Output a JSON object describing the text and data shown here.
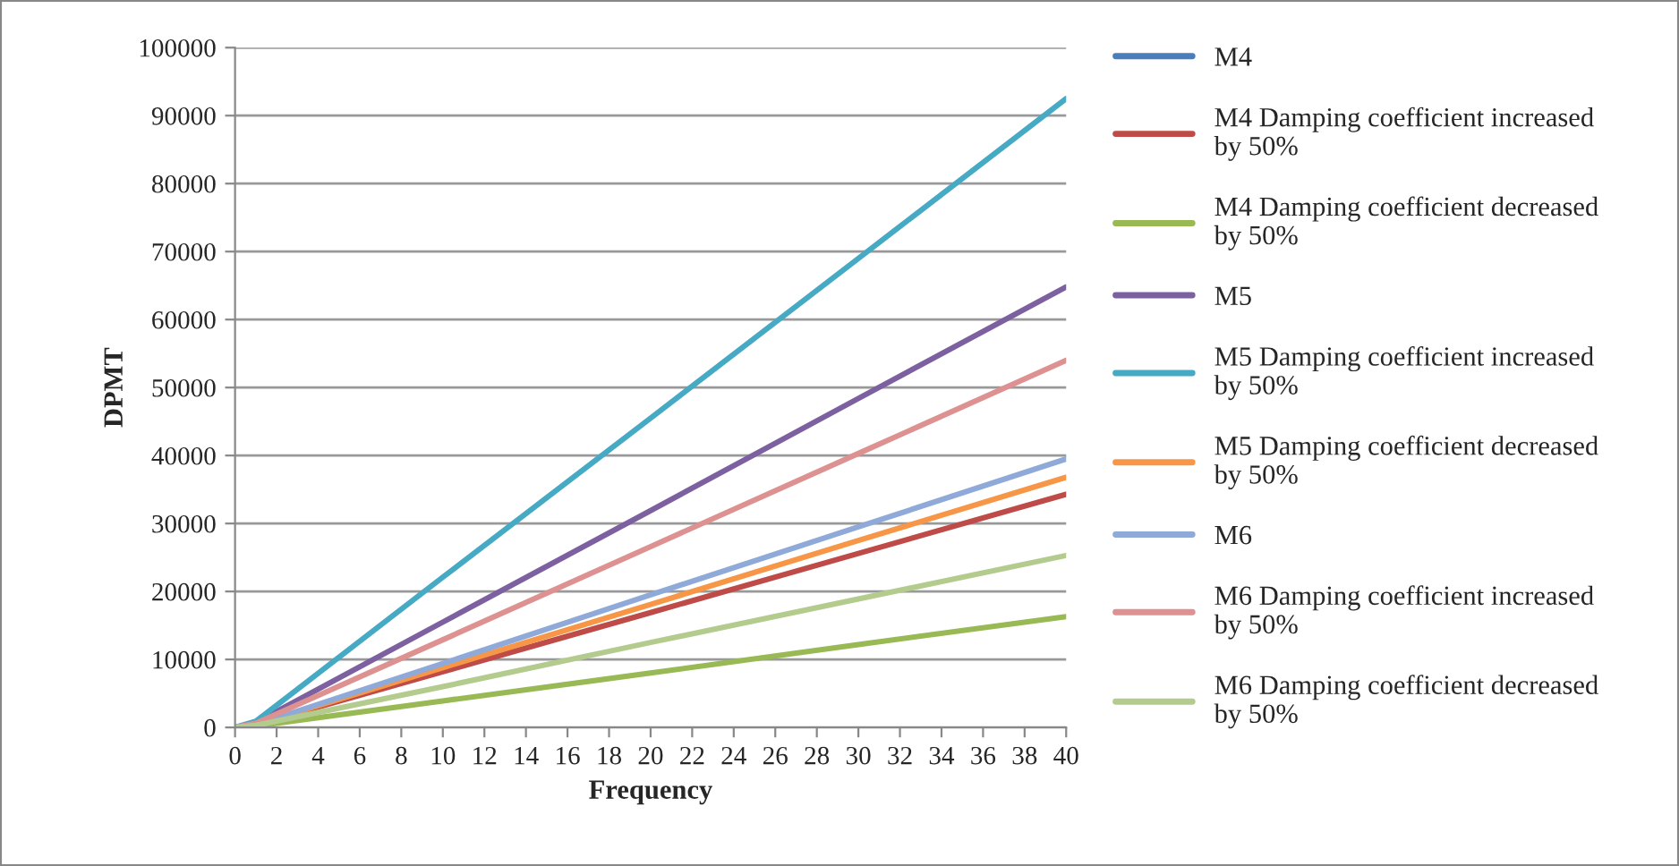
{
  "chart_data": {
    "type": "line",
    "xlabel": "Frequency",
    "ylabel": "DPMT",
    "xlim": [
      0,
      40
    ],
    "xticks": [
      0,
      2,
      4,
      6,
      8,
      10,
      12,
      14,
      16,
      18,
      20,
      22,
      24,
      26,
      28,
      30,
      32,
      34,
      36,
      38,
      40
    ],
    "ylim": [
      0,
      100000
    ],
    "yticks": [
      0,
      10000,
      20000,
      30000,
      40000,
      50000,
      60000,
      70000,
      80000,
      90000,
      100000
    ],
    "grid": "y",
    "legend": "right",
    "marker": "none",
    "line_style": "solid",
    "x": [
      0,
      1,
      10,
      20,
      30,
      40
    ],
    "series": [
      {
        "name": "M4",
        "color": "#4a7ebb",
        "values": [
          null,
          null,
          null,
          null,
          null,
          null
        ]
      },
      {
        "name": "M4 Damping coefficient increased by 50%",
        "color": "#be4b48",
        "values": [
          0,
          400,
          8200,
          16900,
          25600,
          34300
        ]
      },
      {
        "name": "M4 Damping coefficient decreased by 50%",
        "color": "#98b954",
        "values": [
          0,
          200,
          3900,
          8000,
          12200,
          16300
        ]
      },
      {
        "name": "M5",
        "color": "#7d60a0",
        "values": [
          0,
          700,
          15500,
          31900,
          48400,
          64800
        ]
      },
      {
        "name": "M5 Damping coefficient increased by 50%",
        "color": "#46aac5",
        "values": [
          0,
          900,
          22100,
          45500,
          69000,
          92500
        ]
      },
      {
        "name": "M5 Damping coefficient decreased by 50%",
        "color": "#f79646",
        "values": [
          0,
          400,
          8800,
          18100,
          27500,
          36800
        ]
      },
      {
        "name": "M6",
        "color": "#8faad8",
        "values": [
          0,
          400,
          9400,
          19500,
          29500,
          39500
        ]
      },
      {
        "name": "M6 Damping coefficient increased by 50%",
        "color": "#dd9190",
        "values": [
          0,
          600,
          12900,
          26600,
          40300,
          54000
        ]
      },
      {
        "name": "M6 Damping coefficient decreased by 50%",
        "color": "#b3cc8e",
        "values": [
          0,
          300,
          6000,
          12500,
          18900,
          25300
        ]
      }
    ]
  }
}
